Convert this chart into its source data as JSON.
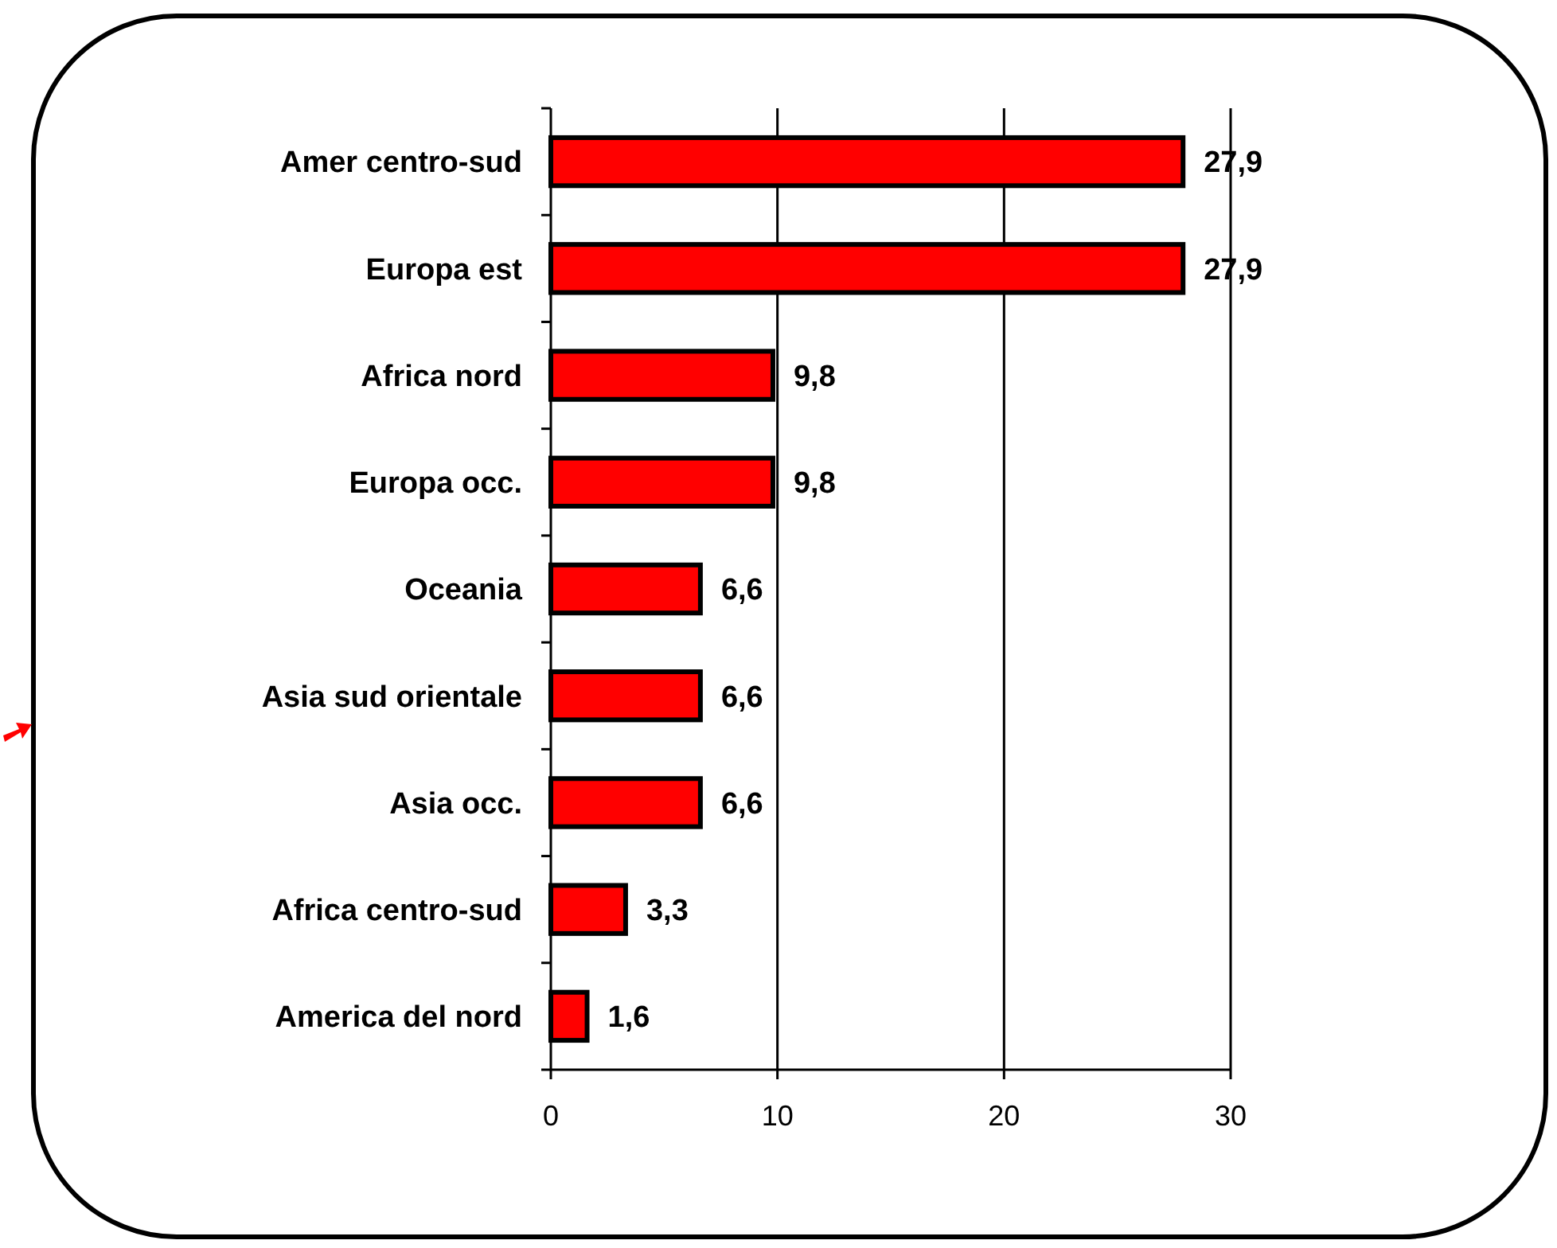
{
  "chart_data": {
    "type": "bar",
    "orientation": "horizontal",
    "categories": [
      "Amer centro-sud",
      "Europa est",
      "Africa nord",
      "Europa occ.",
      "Oceania",
      "Asia sud orientale",
      "Asia occ.",
      "Africa centro-sud",
      "America del nord"
    ],
    "values": [
      27.9,
      27.9,
      9.8,
      9.8,
      6.6,
      6.6,
      6.6,
      3.3,
      1.6
    ],
    "value_labels": [
      "27,9",
      "27,9",
      "9,8",
      "9,8",
      "6,6",
      "6,6",
      "6,6",
      "3,3",
      "1,6"
    ],
    "color": "#ff0000",
    "xlim": [
      0,
      30
    ],
    "xticks": [
      0,
      10,
      20,
      30
    ],
    "grid": "x"
  }
}
